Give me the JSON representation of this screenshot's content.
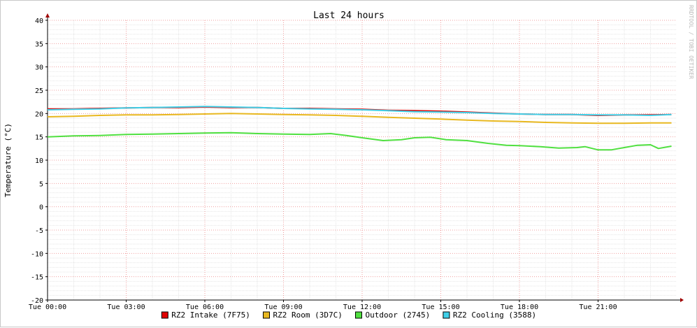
{
  "chart_data": {
    "type": "line",
    "title": "Last 24 hours",
    "ylabel": "Temperature (°C)",
    "xlabel": "",
    "watermark": "RRDTOOL / TOBI OETIKER",
    "ylim": [
      -20,
      40
    ],
    "yticks": [
      -20,
      -15,
      -10,
      -5,
      0,
      5,
      10,
      15,
      20,
      25,
      30,
      35,
      40
    ],
    "xlim": [
      0,
      24
    ],
    "xticks": [
      {
        "hour": 0,
        "label": "Tue 00:00"
      },
      {
        "hour": 3,
        "label": "Tue 03:00"
      },
      {
        "hour": 6,
        "label": "Tue 06:00"
      },
      {
        "hour": 9,
        "label": "Tue 09:00"
      },
      {
        "hour": 12,
        "label": "Tue 12:00"
      },
      {
        "hour": 15,
        "label": "Tue 15:00"
      },
      {
        "hour": 18,
        "label": "Tue 18:00"
      },
      {
        "hour": 21,
        "label": "Tue 21:00"
      }
    ],
    "grid": true,
    "legend_position": "bottom",
    "background_color": "#ffffff",
    "grid_color": "#f0a0a0",
    "series": [
      {
        "name": "RZ2 Intake (7F75)",
        "color": "#e00000",
        "x": [
          0,
          1,
          2,
          3,
          4,
          5,
          6,
          7,
          8,
          9,
          10,
          11,
          12,
          13,
          14,
          15,
          16,
          17,
          18,
          19,
          20,
          21,
          22,
          23,
          23.8
        ],
        "y": [
          21.0,
          21.0,
          21.1,
          21.2,
          21.3,
          21.3,
          21.4,
          21.3,
          21.3,
          21.1,
          21.1,
          21.0,
          20.9,
          20.7,
          20.6,
          20.5,
          20.3,
          20.1,
          19.9,
          19.8,
          19.8,
          19.6,
          19.7,
          19.7,
          19.8
        ]
      },
      {
        "name": "RZ2 Room (3D7C)",
        "color": "#e8b820",
        "x": [
          0,
          1,
          2,
          3,
          4,
          5,
          6,
          7,
          8,
          9,
          10,
          11,
          12,
          13,
          14,
          15,
          16,
          17,
          18,
          19,
          20,
          21,
          22,
          23,
          23.8
        ],
        "y": [
          19.3,
          19.4,
          19.6,
          19.7,
          19.7,
          19.8,
          19.9,
          20.0,
          19.9,
          19.8,
          19.7,
          19.6,
          19.4,
          19.2,
          19.0,
          18.8,
          18.6,
          18.4,
          18.3,
          18.1,
          18.0,
          17.9,
          17.9,
          18.0,
          18.0
        ]
      },
      {
        "name": "Outdoor (2745)",
        "color": "#50e040",
        "x": [
          0,
          1,
          2,
          3,
          4,
          5,
          6,
          7,
          8,
          9,
          10,
          10.8,
          11.4,
          12,
          12.8,
          13.5,
          14,
          14.6,
          15.2,
          16,
          16.8,
          17.5,
          18,
          18.8,
          19.5,
          20.2,
          20.5,
          21,
          21.5,
          22,
          22.5,
          23,
          23.3,
          23.8
        ],
        "y": [
          15.0,
          15.2,
          15.3,
          15.5,
          15.6,
          15.7,
          15.8,
          15.9,
          15.7,
          15.6,
          15.5,
          15.7,
          15.3,
          14.8,
          14.2,
          14.4,
          14.8,
          14.9,
          14.4,
          14.2,
          13.6,
          13.2,
          13.1,
          12.9,
          12.6,
          12.7,
          12.9,
          12.2,
          12.2,
          12.7,
          13.2,
          13.3,
          12.5,
          13.0
        ]
      },
      {
        "name": "RZ2 Cooling (3588)",
        "color": "#40d0e8",
        "x": [
          0,
          1,
          2,
          3,
          4,
          5,
          6,
          7,
          8,
          9,
          10,
          11,
          12,
          13,
          14,
          15,
          16,
          17,
          18,
          19,
          20,
          21,
          22,
          23,
          23.8
        ],
        "y": [
          20.8,
          20.9,
          21.0,
          21.2,
          21.3,
          21.4,
          21.5,
          21.4,
          21.3,
          21.1,
          21.0,
          20.9,
          20.8,
          20.6,
          20.4,
          20.3,
          20.2,
          20.0,
          19.9,
          19.8,
          19.8,
          19.7,
          19.7,
          19.6,
          19.8
        ]
      }
    ]
  }
}
